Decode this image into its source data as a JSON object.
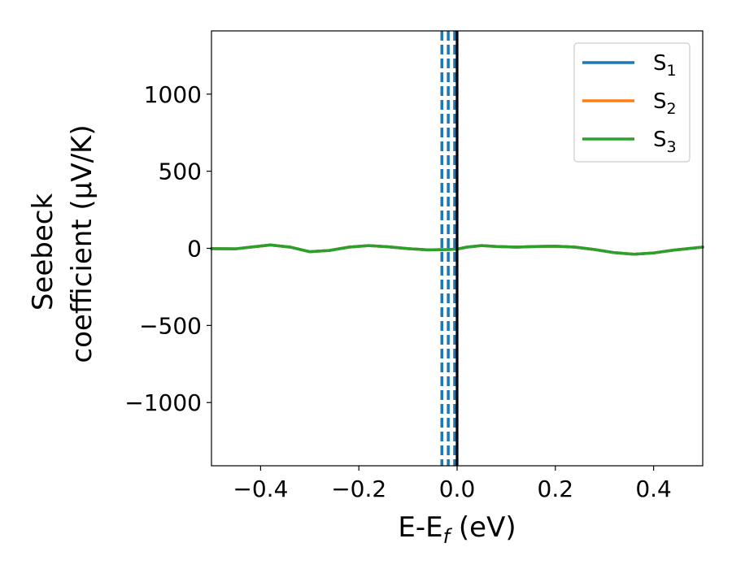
{
  "chart_data": {
    "type": "line",
    "xlabel": {
      "main": "E-E",
      "sub": "f",
      "suffix": " (eV)"
    },
    "ylabel": {
      "line1": "Seebeck",
      "line2": "coefficient  (μV/K)"
    },
    "xlim": [
      -0.5,
      0.5
    ],
    "ylim": [
      -1410,
      1410
    ],
    "xticks": [
      -0.4,
      -0.2,
      0.0,
      0.2,
      0.4
    ],
    "xtick_labels": [
      "−0.4",
      "−0.2",
      "0.0",
      "0.2",
      "0.4"
    ],
    "yticks": [
      -1000,
      -500,
      0,
      500,
      1000
    ],
    "ytick_labels": [
      "−1000",
      "−500",
      "0",
      "500",
      "1000"
    ],
    "grid": false,
    "legend_position": "top-right",
    "series": [
      {
        "name": "S",
        "sub": "1",
        "color": "#1f77b4",
        "x": [
          -0.5,
          -0.45,
          -0.42,
          -0.38,
          -0.34,
          -0.3,
          -0.26,
          -0.22,
          -0.18,
          -0.14,
          -0.1,
          -0.06,
          -0.02,
          0.0,
          0.02,
          0.05,
          0.08,
          0.12,
          0.16,
          0.2,
          0.24,
          0.28,
          0.32,
          0.36,
          0.4,
          0.44,
          0.47,
          0.5
        ],
        "y": [
          -2,
          -3,
          8,
          22,
          8,
          -22,
          -14,
          8,
          18,
          10,
          -2,
          -10,
          -8,
          -5,
          8,
          18,
          12,
          8,
          12,
          14,
          8,
          -8,
          -28,
          -38,
          -30,
          -12,
          -2,
          8
        ]
      },
      {
        "name": "S",
        "sub": "2",
        "color": "#ff7f0e",
        "x": [
          -0.5,
          -0.45,
          -0.42,
          -0.38,
          -0.34,
          -0.3,
          -0.26,
          -0.22,
          -0.18,
          -0.14,
          -0.1,
          -0.06,
          -0.02,
          0.0,
          0.02,
          0.05,
          0.08,
          0.12,
          0.16,
          0.2,
          0.24,
          0.28,
          0.32,
          0.36,
          0.4,
          0.44,
          0.47,
          0.5
        ],
        "y": [
          -2,
          -3,
          8,
          22,
          8,
          -22,
          -14,
          8,
          18,
          10,
          -2,
          -10,
          -8,
          -5,
          8,
          18,
          12,
          8,
          12,
          14,
          8,
          -8,
          -28,
          -38,
          -30,
          -12,
          -2,
          8
        ]
      },
      {
        "name": "S",
        "sub": "3",
        "color": "#2ca02c",
        "x": [
          -0.5,
          -0.45,
          -0.42,
          -0.38,
          -0.34,
          -0.3,
          -0.26,
          -0.22,
          -0.18,
          -0.14,
          -0.1,
          -0.06,
          -0.02,
          0.0,
          0.02,
          0.05,
          0.08,
          0.12,
          0.16,
          0.2,
          0.24,
          0.28,
          0.32,
          0.36,
          0.4,
          0.44,
          0.47,
          0.5
        ],
        "y": [
          -2,
          -3,
          8,
          22,
          8,
          -22,
          -14,
          8,
          18,
          10,
          -2,
          -10,
          -8,
          -5,
          8,
          18,
          12,
          8,
          12,
          14,
          8,
          -8,
          -28,
          -38,
          -30,
          -12,
          -2,
          8
        ]
      }
    ],
    "vertical_lines": [
      {
        "x": -0.031,
        "style": "dashed",
        "color": "#1f77b4"
      },
      {
        "x": -0.018,
        "style": "dashed",
        "color": "#1f77b4"
      },
      {
        "x": -0.005,
        "style": "dashed",
        "color": "#1f77b4"
      },
      {
        "x": 0.0,
        "style": "solid",
        "color": "#000000"
      }
    ]
  }
}
